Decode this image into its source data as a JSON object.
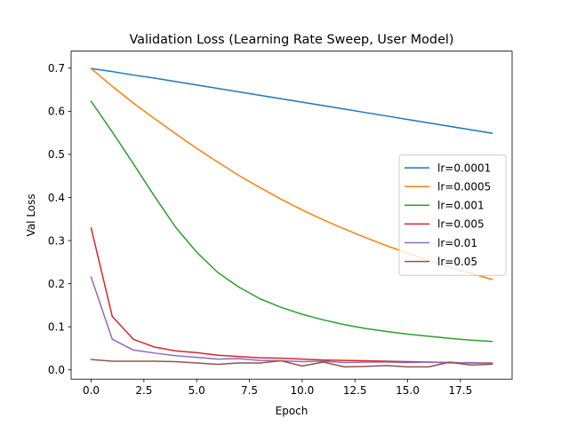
{
  "chart_data": {
    "type": "line",
    "title": "Validation Loss (Learning Rate Sweep, User Model)",
    "xlabel": "Epoch",
    "ylabel": "Val Loss",
    "xlim": [
      -0.95,
      19.95
    ],
    "ylim": [
      -0.0215,
      0.7395
    ],
    "xticks": [
      0.0,
      2.5,
      5.0,
      7.5,
      10.0,
      12.5,
      15.0,
      17.5
    ],
    "xtick_labels": [
      "0.0",
      "2.5",
      "5.0",
      "7.5",
      "10.0",
      "12.5",
      "15.0",
      "17.5"
    ],
    "yticks": [
      0.0,
      0.1,
      0.2,
      0.3,
      0.4,
      0.5,
      0.6,
      0.7
    ],
    "ytick_labels": [
      "0.0",
      "0.1",
      "0.2",
      "0.3",
      "0.4",
      "0.5",
      "0.6",
      "0.7"
    ],
    "grid": false,
    "legend_position": "center-right",
    "x": [
      0,
      1,
      2,
      3,
      4,
      5,
      6,
      7,
      8,
      9,
      10,
      11,
      12,
      13,
      14,
      15,
      16,
      17,
      18,
      19
    ],
    "series": [
      {
        "name": "lr=0.0001",
        "color": "#1f77b4",
        "values": [
          0.699,
          0.692,
          0.684,
          0.677,
          0.669,
          0.661,
          0.653,
          0.645,
          0.637,
          0.629,
          0.621,
          0.613,
          0.605,
          0.597,
          0.589,
          0.581,
          0.573,
          0.565,
          0.557,
          0.549
        ]
      },
      {
        "name": "lr=0.0005",
        "color": "#ff7f0e",
        "values": [
          0.699,
          0.658,
          0.619,
          0.583,
          0.548,
          0.514,
          0.482,
          0.451,
          0.423,
          0.396,
          0.371,
          0.348,
          0.327,
          0.307,
          0.288,
          0.271,
          0.254,
          0.238,
          0.224,
          0.21
        ]
      },
      {
        "name": "lr=0.001",
        "color": "#2ca02c",
        "values": [
          0.623,
          0.552,
          0.478,
          0.403,
          0.331,
          0.273,
          0.226,
          0.192,
          0.165,
          0.145,
          0.129,
          0.116,
          0.105,
          0.096,
          0.089,
          0.083,
          0.078,
          0.073,
          0.069,
          0.066
        ]
      },
      {
        "name": "lr=0.005",
        "color": "#d62728",
        "values": [
          0.329,
          0.124,
          0.071,
          0.053,
          0.044,
          0.04,
          0.034,
          0.031,
          0.028,
          0.027,
          0.025,
          0.023,
          0.022,
          0.021,
          0.02,
          0.019,
          0.018,
          0.017,
          0.016,
          0.016
        ]
      },
      {
        "name": "lr=0.01",
        "color": "#9467bd",
        "values": [
          0.215,
          0.071,
          0.046,
          0.039,
          0.033,
          0.029,
          0.025,
          0.026,
          0.022,
          0.021,
          0.019,
          0.02,
          0.017,
          0.018,
          0.018,
          0.017,
          0.018,
          0.016,
          0.017,
          0.015
        ]
      },
      {
        "name": "lr=0.05",
        "color": "#8c564b",
        "values": [
          0.024,
          0.02,
          0.02,
          0.02,
          0.019,
          0.016,
          0.013,
          0.016,
          0.016,
          0.021,
          0.009,
          0.018,
          0.007,
          0.008,
          0.01,
          0.007,
          0.007,
          0.018,
          0.011,
          0.013
        ]
      }
    ]
  }
}
